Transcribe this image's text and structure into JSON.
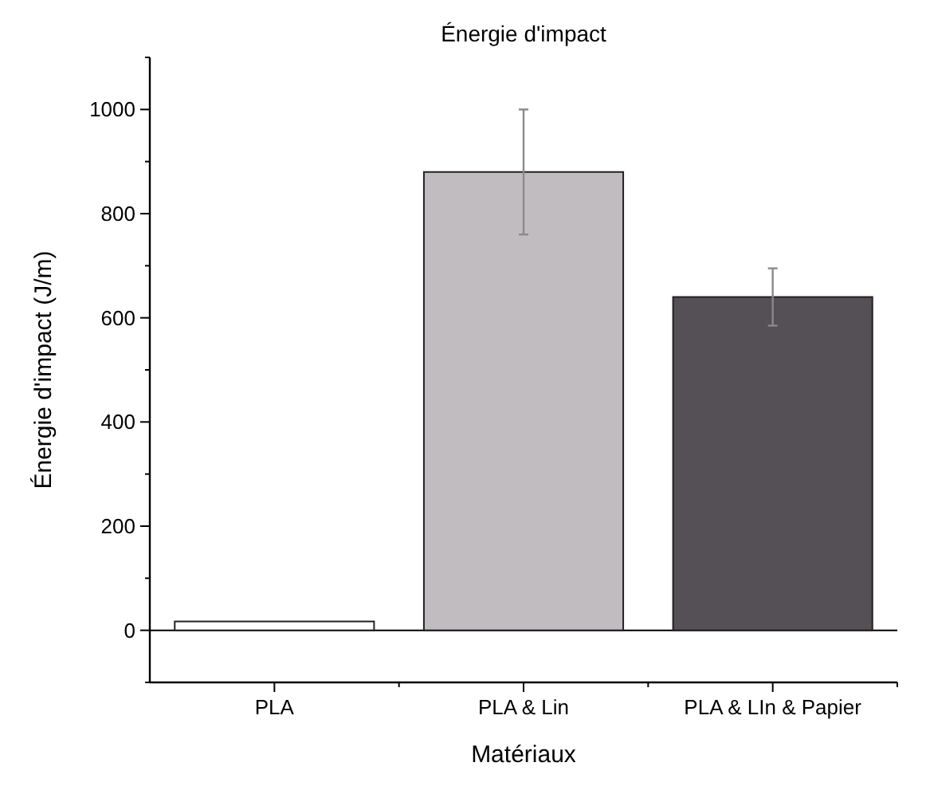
{
  "chart_data": {
    "type": "bar",
    "title": "Énergie d'impact",
    "xlabel": "Matériaux",
    "ylabel": "Énergie d'impact (J/m)",
    "categories": [
      "PLA",
      "PLA & Lin",
      "PLA & LIn & Papier"
    ],
    "values": [
      17,
      880,
      640
    ],
    "errors": [
      null,
      [
        760,
        1000
      ],
      [
        585,
        695
      ]
    ],
    "colors": [
      "#ffffff",
      "#c0bcc0",
      "#555055"
    ],
    "ylim": [
      -100,
      1100
    ],
    "yticks": [
      {
        "value": -100,
        "label": null
      },
      0,
      {
        "value": 100,
        "label": null
      },
      200,
      {
        "value": 300,
        "label": null
      },
      400,
      {
        "value": 500,
        "label": null
      },
      600,
      {
        "value": 700,
        "label": null
      },
      800,
      {
        "value": 900,
        "label": null
      },
      1000,
      {
        "value": 1100,
        "label": null
      }
    ],
    "ref_lines": [
      {
        "axis": "y",
        "value": 0,
        "label": null,
        "color": "#000000"
      }
    ],
    "grid": false
  }
}
